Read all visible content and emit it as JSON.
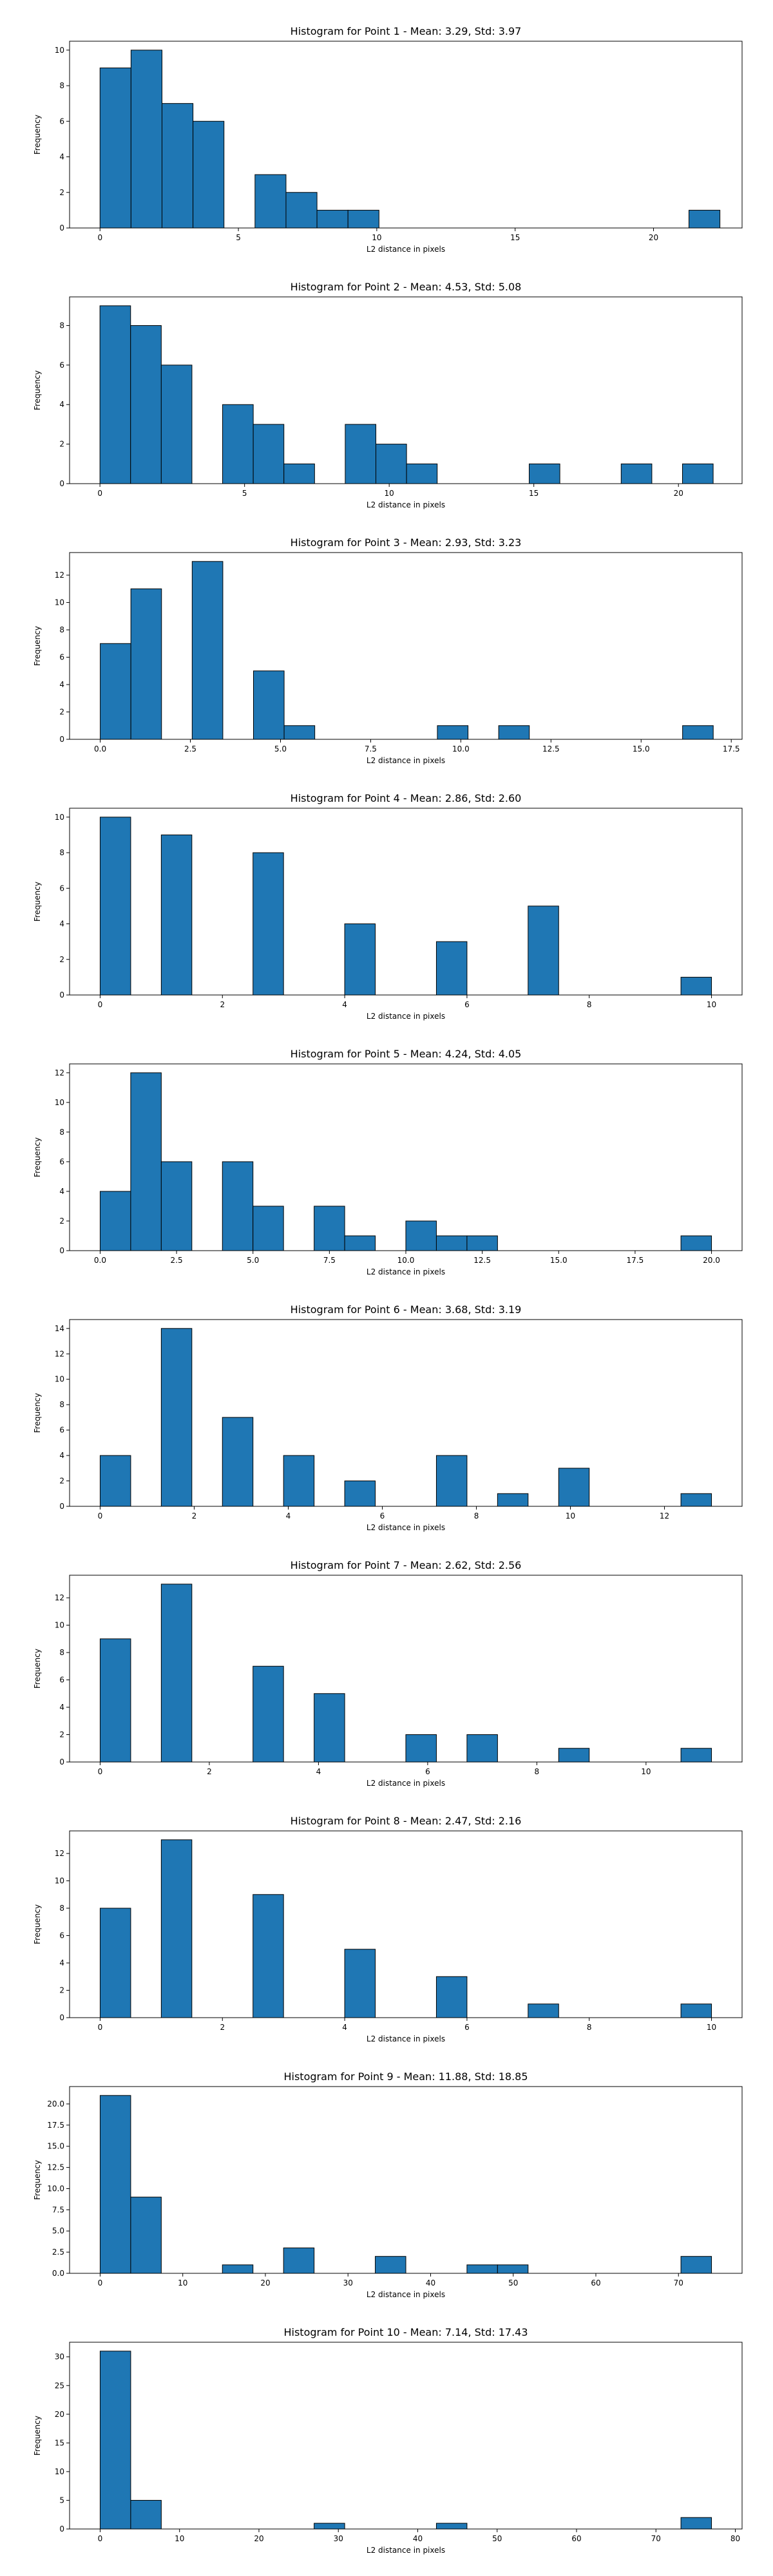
{
  "chart_data": [
    {
      "type": "bar",
      "title": "Histogram for Point 1 - Mean: 3.29, Std: 3.97",
      "xlabel": "L2 distance in pixels",
      "ylabel": "Frequency",
      "xlim": [
        -1.1,
        23.2
      ],
      "ylim": [
        0,
        10.5
      ],
      "xticks": [
        0,
        5,
        10,
        15,
        20
      ],
      "xtick_labels": [
        "0",
        "5",
        "10",
        "15",
        "20"
      ],
      "yticks": [
        0,
        2,
        4,
        6,
        8,
        10
      ],
      "ytick_labels": [
        "0",
        "2",
        "4",
        "6",
        "8",
        "10"
      ],
      "bins": [
        {
          "x0": 0.0,
          "x1": 1.12,
          "count": 9
        },
        {
          "x0": 1.12,
          "x1": 2.24,
          "count": 10
        },
        {
          "x0": 2.24,
          "x1": 3.36,
          "count": 7
        },
        {
          "x0": 3.36,
          "x1": 4.48,
          "count": 6
        },
        {
          "x0": 5.6,
          "x1": 6.72,
          "count": 3
        },
        {
          "x0": 6.72,
          "x1": 7.84,
          "count": 2
        },
        {
          "x0": 7.84,
          "x1": 8.96,
          "count": 1
        },
        {
          "x0": 8.96,
          "x1": 10.08,
          "count": 1
        },
        {
          "x0": 21.28,
          "x1": 22.4,
          "count": 1
        }
      ]
    },
    {
      "type": "bar",
      "title": "Histogram for Point 2 - Mean: 4.53, Std: 5.08",
      "xlabel": "L2 distance in pixels",
      "ylabel": "Frequency",
      "xlim": [
        -1.05,
        22.2
      ],
      "ylim": [
        0,
        9.45
      ],
      "xticks": [
        0,
        5,
        10,
        15,
        20
      ],
      "xtick_labels": [
        "0",
        "5",
        "10",
        "15",
        "20"
      ],
      "yticks": [
        0,
        2,
        4,
        6,
        8
      ],
      "ytick_labels": [
        "0",
        "2",
        "4",
        "6",
        "8"
      ],
      "bins": [
        {
          "x0": 0.0,
          "x1": 1.06,
          "count": 9
        },
        {
          "x0": 1.06,
          "x1": 2.12,
          "count": 8
        },
        {
          "x0": 2.12,
          "x1": 3.18,
          "count": 6
        },
        {
          "x0": 4.24,
          "x1": 5.3,
          "count": 4
        },
        {
          "x0": 5.3,
          "x1": 6.36,
          "count": 3
        },
        {
          "x0": 6.36,
          "x1": 7.42,
          "count": 1
        },
        {
          "x0": 8.48,
          "x1": 9.54,
          "count": 3
        },
        {
          "x0": 9.54,
          "x1": 10.6,
          "count": 2
        },
        {
          "x0": 10.6,
          "x1": 11.66,
          "count": 1
        },
        {
          "x0": 14.84,
          "x1": 15.9,
          "count": 1
        },
        {
          "x0": 18.02,
          "x1": 19.08,
          "count": 1
        },
        {
          "x0": 20.14,
          "x1": 21.2,
          "count": 1
        }
      ]
    },
    {
      "type": "bar",
      "title": "Histogram for Point 3 - Mean: 2.93, Std: 3.23",
      "xlabel": "L2 distance in pixels",
      "ylabel": "Frequency",
      "xlim": [
        -0.85,
        17.8
      ],
      "ylim": [
        0,
        13.65
      ],
      "xticks": [
        0,
        2.5,
        5,
        7.5,
        10,
        12.5,
        15,
        17.5
      ],
      "xtick_labels": [
        "0.0",
        "2.5",
        "5.0",
        "7.5",
        "10.0",
        "12.5",
        "15.0",
        "17.5"
      ],
      "yticks": [
        0,
        2,
        4,
        6,
        8,
        10,
        12
      ],
      "ytick_labels": [
        "0",
        "2",
        "4",
        "6",
        "8",
        "10",
        "12"
      ],
      "bins": [
        {
          "x0": 0.0,
          "x1": 0.85,
          "count": 7
        },
        {
          "x0": 0.85,
          "x1": 1.7,
          "count": 11
        },
        {
          "x0": 2.55,
          "x1": 3.4,
          "count": 13
        },
        {
          "x0": 4.25,
          "x1": 5.1,
          "count": 5
        },
        {
          "x0": 5.1,
          "x1": 5.95,
          "count": 1
        },
        {
          "x0": 9.35,
          "x1": 10.2,
          "count": 1
        },
        {
          "x0": 11.05,
          "x1": 11.9,
          "count": 1
        },
        {
          "x0": 16.15,
          "x1": 17.0,
          "count": 1
        }
      ]
    },
    {
      "type": "bar",
      "title": "Histogram for Point 4 - Mean: 2.86, Std: 2.60",
      "xlabel": "L2 distance in pixels",
      "ylabel": "Frequency",
      "xlim": [
        -0.5,
        10.5
      ],
      "ylim": [
        0,
        10.5
      ],
      "xticks": [
        0,
        2,
        4,
        6,
        8,
        10
      ],
      "xtick_labels": [
        "0",
        "2",
        "4",
        "6",
        "8",
        "10"
      ],
      "yticks": [
        0,
        2,
        4,
        6,
        8,
        10
      ],
      "ytick_labels": [
        "0",
        "2",
        "4",
        "6",
        "8",
        "10"
      ],
      "bins": [
        {
          "x0": 0.0,
          "x1": 0.5,
          "count": 10
        },
        {
          "x0": 1.0,
          "x1": 1.5,
          "count": 9
        },
        {
          "x0": 2.5,
          "x1": 3.0,
          "count": 8
        },
        {
          "x0": 4.0,
          "x1": 4.5,
          "count": 4
        },
        {
          "x0": 5.5,
          "x1": 6.0,
          "count": 3
        },
        {
          "x0": 7.0,
          "x1": 7.5,
          "count": 5
        },
        {
          "x0": 9.5,
          "x1": 10.0,
          "count": 1
        }
      ]
    },
    {
      "type": "bar",
      "title": "Histogram for Point 5 - Mean: 4.24, Std: 4.05",
      "xlabel": "L2 distance in pixels",
      "ylabel": "Frequency",
      "xlim": [
        -1.0,
        21.0
      ],
      "ylim": [
        0,
        12.6
      ],
      "xticks": [
        0,
        2.5,
        5,
        7.5,
        10,
        12.5,
        15,
        17.5,
        20
      ],
      "xtick_labels": [
        "0.0",
        "2.5",
        "5.0",
        "7.5",
        "10.0",
        "12.5",
        "15.0",
        "17.5",
        "20.0"
      ],
      "yticks": [
        0,
        2,
        4,
        6,
        8,
        10,
        12
      ],
      "ytick_labels": [
        "0",
        "2",
        "4",
        "6",
        "8",
        "10",
        "12"
      ],
      "bins": [
        {
          "x0": 0.0,
          "x1": 1.0,
          "count": 4
        },
        {
          "x0": 1.0,
          "x1": 2.0,
          "count": 12
        },
        {
          "x0": 2.0,
          "x1": 3.0,
          "count": 6
        },
        {
          "x0": 4.0,
          "x1": 5.0,
          "count": 6
        },
        {
          "x0": 5.0,
          "x1": 6.0,
          "count": 3
        },
        {
          "x0": 7.0,
          "x1": 8.0,
          "count": 3
        },
        {
          "x0": 8.0,
          "x1": 9.0,
          "count": 1
        },
        {
          "x0": 10.0,
          "x1": 11.0,
          "count": 2
        },
        {
          "x0": 11.0,
          "x1": 12.0,
          "count": 1
        },
        {
          "x0": 12.0,
          "x1": 13.0,
          "count": 1
        },
        {
          "x0": 19.0,
          "x1": 20.0,
          "count": 1
        }
      ]
    },
    {
      "type": "bar",
      "title": "Histogram for Point 6 - Mean: 3.68, Std: 3.19",
      "xlabel": "L2 distance in pixels",
      "ylabel": "Frequency",
      "xlim": [
        -0.65,
        13.65
      ],
      "ylim": [
        0,
        14.7
      ],
      "xticks": [
        0,
        2,
        4,
        6,
        8,
        10,
        12
      ],
      "xtick_labels": [
        "0",
        "2",
        "4",
        "6",
        "8",
        "10",
        "12"
      ],
      "yticks": [
        0,
        2,
        4,
        6,
        8,
        10,
        12,
        14
      ],
      "ytick_labels": [
        "0",
        "2",
        "4",
        "6",
        "8",
        "10",
        "12",
        "14"
      ],
      "bins": [
        {
          "x0": 0.0,
          "x1": 0.65,
          "count": 4
        },
        {
          "x0": 1.3,
          "x1": 1.95,
          "count": 14
        },
        {
          "x0": 2.6,
          "x1": 3.25,
          "count": 7
        },
        {
          "x0": 3.9,
          "x1": 4.55,
          "count": 4
        },
        {
          "x0": 5.2,
          "x1": 5.85,
          "count": 2
        },
        {
          "x0": 7.15,
          "x1": 7.8,
          "count": 4
        },
        {
          "x0": 8.45,
          "x1": 9.1,
          "count": 1
        },
        {
          "x0": 9.75,
          "x1": 10.4,
          "count": 3
        },
        {
          "x0": 12.35,
          "x1": 13.0,
          "count": 1
        }
      ]
    },
    {
      "type": "bar",
      "title": "Histogram for Point 7 - Mean: 2.62, Std: 2.56",
      "xlabel": "L2 distance in pixels",
      "ylabel": "Frequency",
      "xlim": [
        -0.56,
        11.76
      ],
      "ylim": [
        0,
        13.65
      ],
      "xticks": [
        0,
        2,
        4,
        6,
        8,
        10
      ],
      "xtick_labels": [
        "0",
        "2",
        "4",
        "6",
        "8",
        "10"
      ],
      "yticks": [
        0,
        2,
        4,
        6,
        8,
        10,
        12
      ],
      "ytick_labels": [
        "0",
        "2",
        "4",
        "6",
        "8",
        "10",
        "12"
      ],
      "bins": [
        {
          "x0": 0.0,
          "x1": 0.56,
          "count": 9
        },
        {
          "x0": 1.12,
          "x1": 1.68,
          "count": 13
        },
        {
          "x0": 2.8,
          "x1": 3.36,
          "count": 7
        },
        {
          "x0": 3.92,
          "x1": 4.48,
          "count": 5
        },
        {
          "x0": 5.6,
          "x1": 6.16,
          "count": 2
        },
        {
          "x0": 6.72,
          "x1": 7.28,
          "count": 2
        },
        {
          "x0": 8.4,
          "x1": 8.96,
          "count": 1
        },
        {
          "x0": 10.64,
          "x1": 11.2,
          "count": 1
        }
      ]
    },
    {
      "type": "bar",
      "title": "Histogram for Point 8 - Mean: 2.47, Std: 2.16",
      "xlabel": "L2 distance in pixels",
      "ylabel": "Frequency",
      "xlim": [
        -0.5,
        10.5
      ],
      "ylim": [
        0,
        13.65
      ],
      "xticks": [
        0,
        2,
        4,
        6,
        8,
        10
      ],
      "xtick_labels": [
        "0",
        "2",
        "4",
        "6",
        "8",
        "10"
      ],
      "yticks": [
        0,
        2,
        4,
        6,
        8,
        10,
        12
      ],
      "ytick_labels": [
        "0",
        "2",
        "4",
        "6",
        "8",
        "10",
        "12"
      ],
      "bins": [
        {
          "x0": 0.0,
          "x1": 0.5,
          "count": 8
        },
        {
          "x0": 1.0,
          "x1": 1.5,
          "count": 13
        },
        {
          "x0": 2.5,
          "x1": 3.0,
          "count": 9
        },
        {
          "x0": 4.0,
          "x1": 4.5,
          "count": 5
        },
        {
          "x0": 5.5,
          "x1": 6.0,
          "count": 3
        },
        {
          "x0": 7.0,
          "x1": 7.5,
          "count": 1
        },
        {
          "x0": 9.5,
          "x1": 10.0,
          "count": 1
        }
      ]
    },
    {
      "type": "bar",
      "title": "Histogram for Point 9 - Mean: 11.88, Std: 18.85",
      "xlabel": "L2 distance in pixels",
      "ylabel": "Frequency",
      "xlim": [
        -3.7,
        77.7
      ],
      "ylim": [
        0,
        22.05
      ],
      "xticks": [
        0,
        10,
        20,
        30,
        40,
        50,
        60,
        70
      ],
      "xtick_labels": [
        "0",
        "10",
        "20",
        "30",
        "40",
        "50",
        "60",
        "70"
      ],
      "yticks": [
        0,
        2.5,
        5,
        7.5,
        10,
        12.5,
        15,
        17.5,
        20
      ],
      "ytick_labels": [
        "0.0",
        "2.5",
        "5.0",
        "7.5",
        "10.0",
        "12.5",
        "15.0",
        "17.5",
        "20.0"
      ],
      "bins": [
        {
          "x0": 0.0,
          "x1": 3.7,
          "count": 21
        },
        {
          "x0": 3.7,
          "x1": 7.4,
          "count": 9
        },
        {
          "x0": 14.8,
          "x1": 18.5,
          "count": 1
        },
        {
          "x0": 22.2,
          "x1": 25.9,
          "count": 3
        },
        {
          "x0": 33.3,
          "x1": 37.0,
          "count": 2
        },
        {
          "x0": 44.4,
          "x1": 48.1,
          "count": 1
        },
        {
          "x0": 48.1,
          "x1": 51.8,
          "count": 1
        },
        {
          "x0": 70.3,
          "x1": 74.0,
          "count": 2
        }
      ]
    },
    {
      "type": "bar",
      "title": "Histogram for Point 10 - Mean: 7.14, Std: 17.43",
      "xlabel": "L2 distance in pixels",
      "ylabel": "Frequency",
      "xlim": [
        -3.85,
        80.85
      ],
      "ylim": [
        0,
        32.55
      ],
      "xticks": [
        0,
        10,
        20,
        30,
        40,
        50,
        60,
        70,
        80
      ],
      "xtick_labels": [
        "0",
        "10",
        "20",
        "30",
        "40",
        "50",
        "60",
        "70",
        "80"
      ],
      "yticks": [
        0,
        5,
        10,
        15,
        20,
        25,
        30
      ],
      "ytick_labels": [
        "0",
        "5",
        "10",
        "15",
        "20",
        "25",
        "30"
      ],
      "bins": [
        {
          "x0": 0.0,
          "x1": 3.85,
          "count": 31
        },
        {
          "x0": 3.85,
          "x1": 7.7,
          "count": 5
        },
        {
          "x0": 26.95,
          "x1": 30.8,
          "count": 1
        },
        {
          "x0": 42.35,
          "x1": 46.2,
          "count": 1
        },
        {
          "x0": 73.15,
          "x1": 77.0,
          "count": 2
        }
      ]
    }
  ]
}
